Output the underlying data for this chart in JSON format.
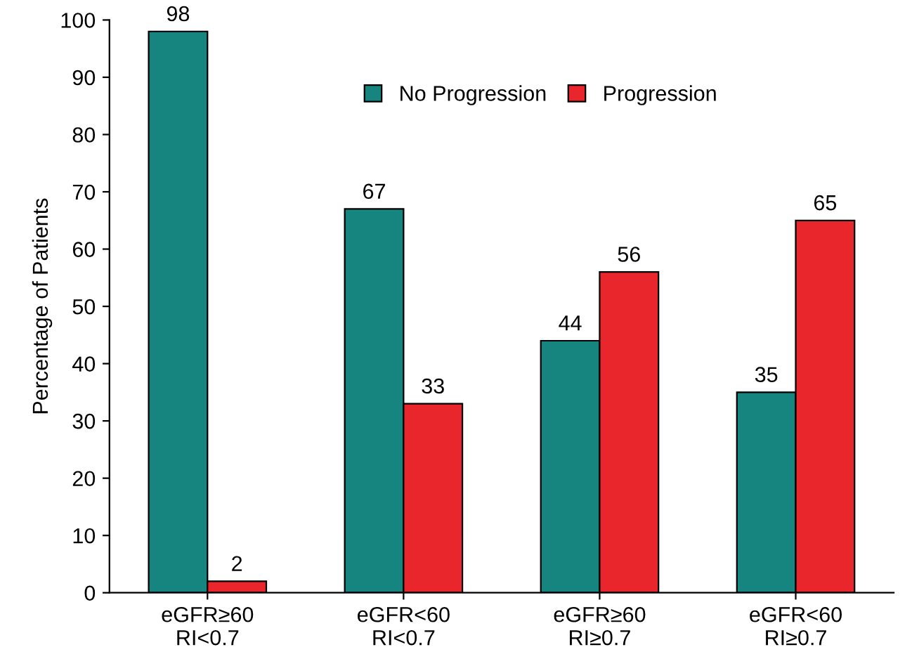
{
  "chart_data": {
    "type": "bar",
    "ylabel": "Percentage of Patients",
    "categories": [
      "eGFR≥60\nRI<0.7",
      "eGFR<60\nRI<0.7",
      "eGFR≥60\nRI≥0.7",
      "eGFR<60\nRI≥0.7"
    ],
    "series": [
      {
        "name": "No Progression",
        "color": "#17857f",
        "values": [
          98,
          67,
          44,
          35
        ]
      },
      {
        "name": "Progression",
        "color": "#e8262b",
        "values": [
          2,
          33,
          56,
          65
        ]
      }
    ],
    "ylim": [
      0,
      100
    ],
    "yticks": [
      0,
      10,
      20,
      30,
      40,
      50,
      60,
      70,
      80,
      90,
      100
    ],
    "data_labels": true,
    "legend": "top",
    "grid": false
  }
}
